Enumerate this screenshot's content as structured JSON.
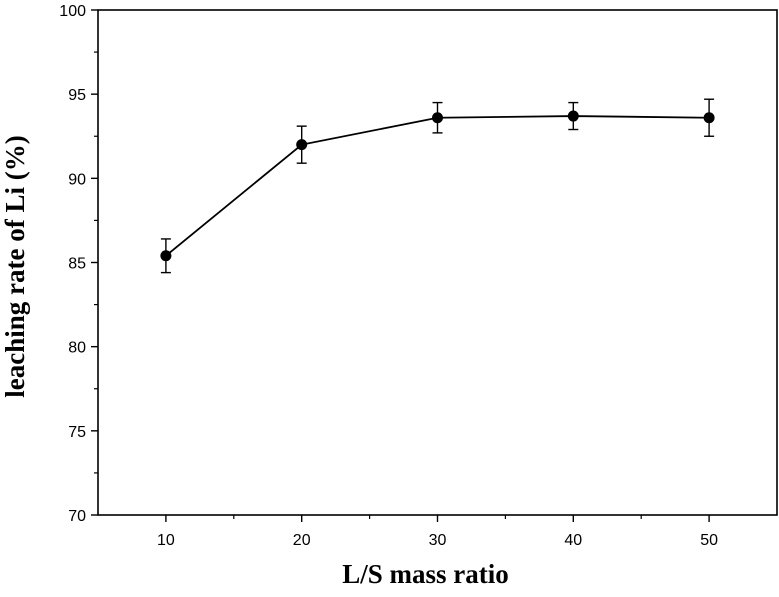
{
  "chart_data": {
    "type": "line",
    "xlabel": "L/S mass ratio",
    "ylabel": "leaching rate of Li (%)",
    "xlim": [
      5,
      55
    ],
    "ylim": [
      70,
      100
    ],
    "x_ticks": [
      10,
      20,
      30,
      40,
      50
    ],
    "y_ticks": [
      70,
      75,
      80,
      85,
      90,
      95,
      100
    ],
    "series": [
      {
        "x": [
          10,
          20,
          30,
          40,
          50
        ],
        "values": [
          85.4,
          92.0,
          93.6,
          93.7,
          93.6
        ],
        "error": [
          1.0,
          1.1,
          0.9,
          0.8,
          1.1
        ]
      }
    ],
    "marker": "circle",
    "grid": false,
    "legend": "none",
    "colors": {
      "line": "#000000",
      "marker": "#000000"
    }
  }
}
